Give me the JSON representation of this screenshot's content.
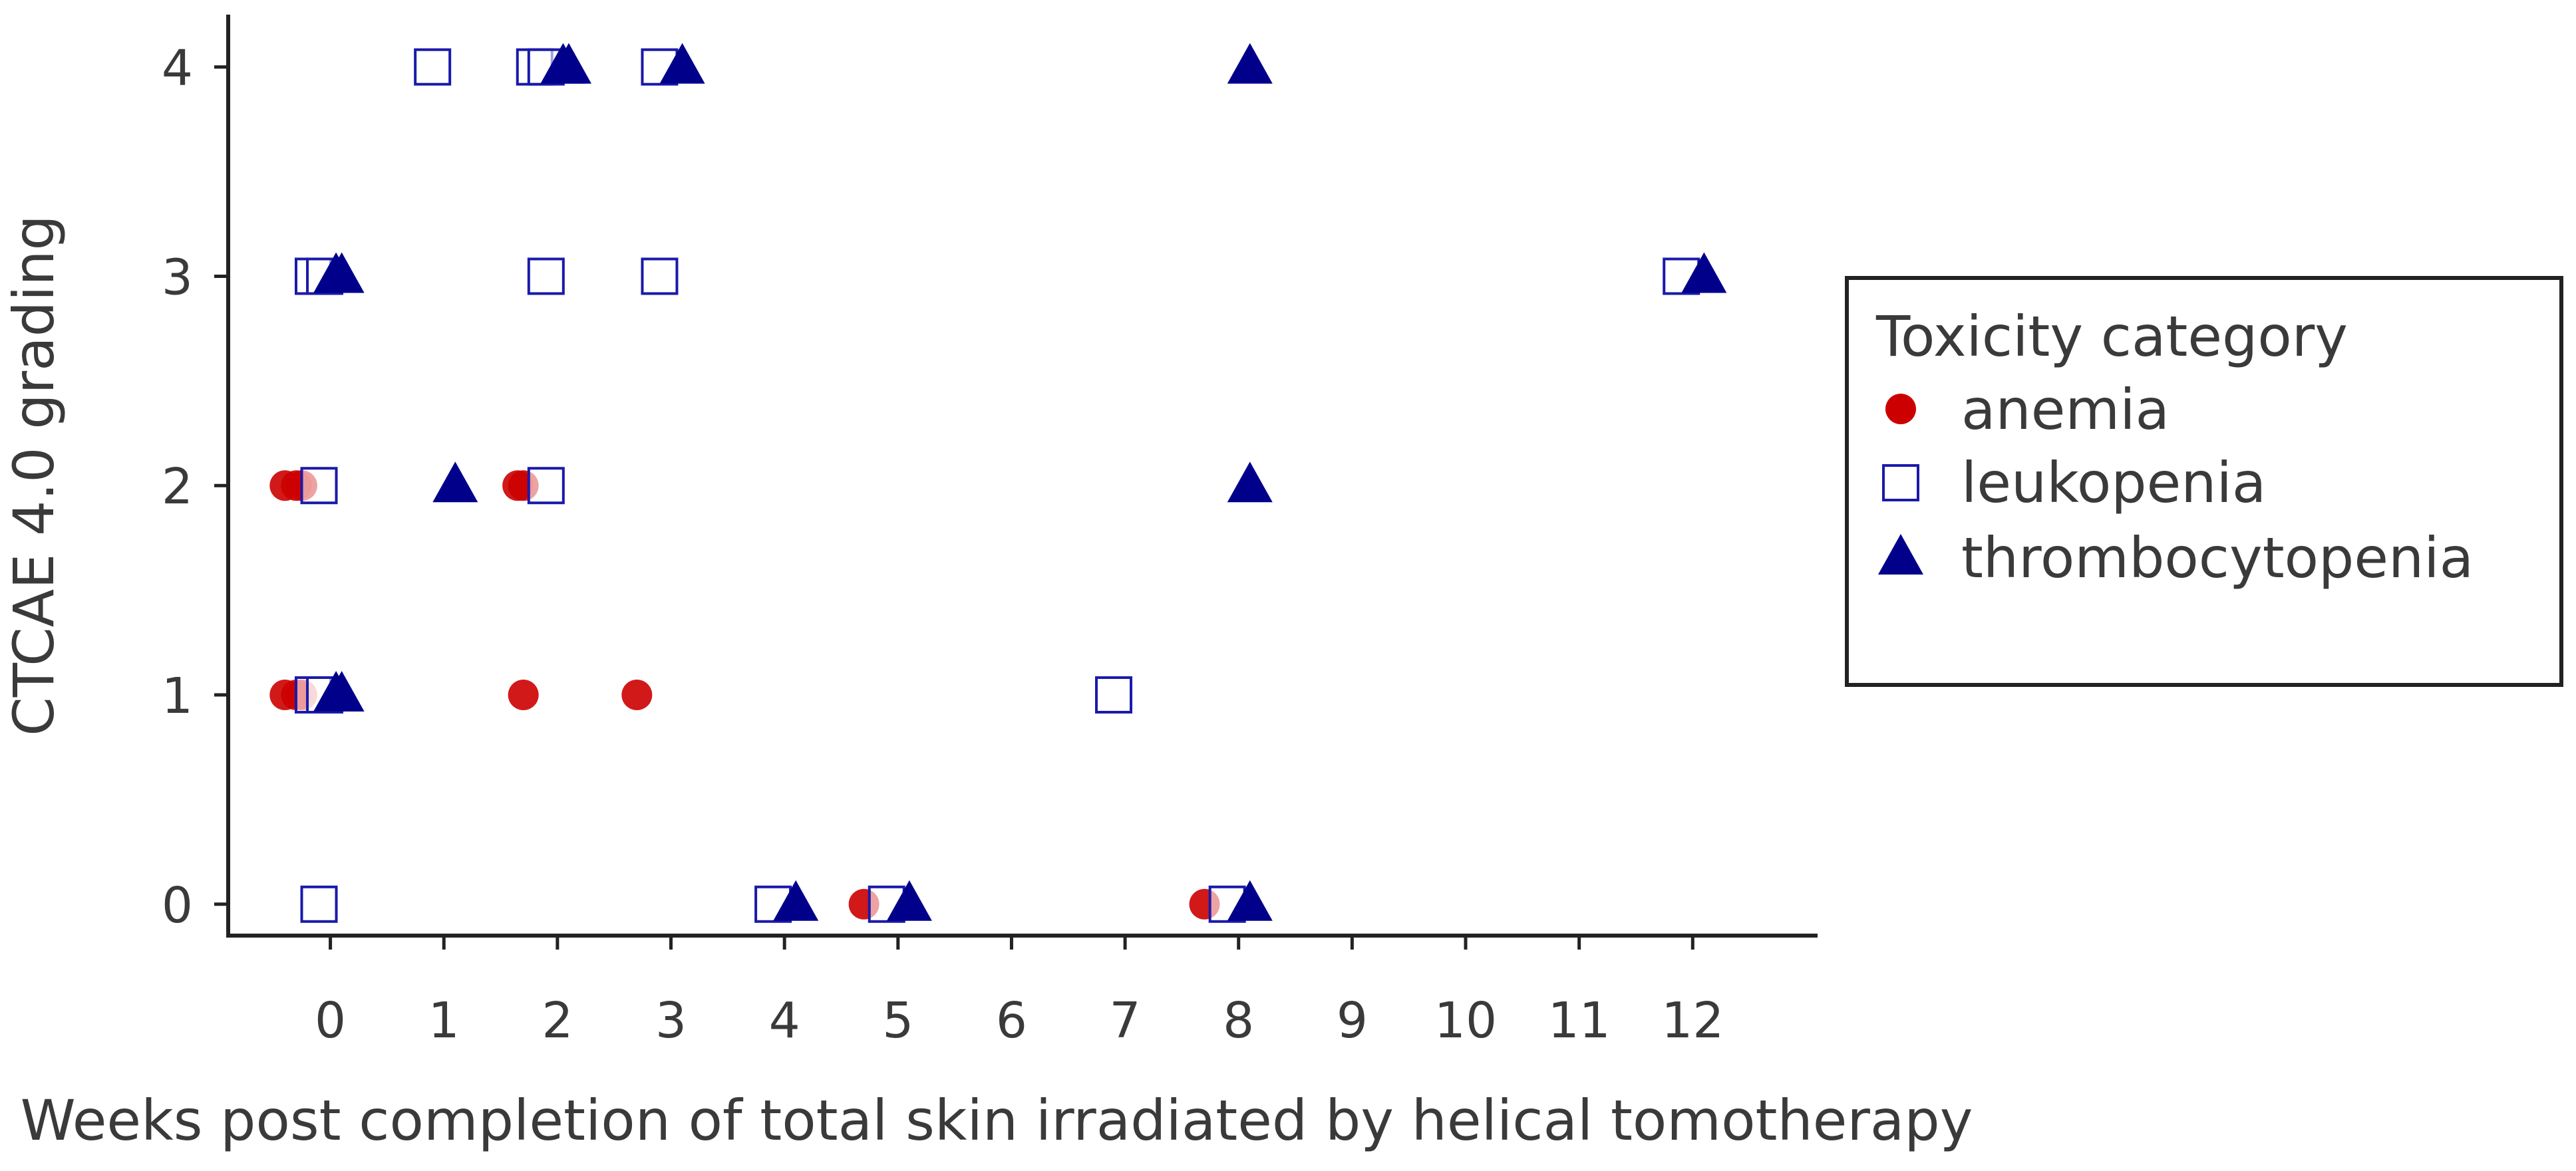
{
  "chart_data": {
    "type": "scatter",
    "title": "",
    "xlabel": "Weeks post completion of total skin irradiated by helical tomotherapy",
    "ylabel": "CTCAE 4.0 grading",
    "xlim": [
      -0.9,
      13.1
    ],
    "ylim": [
      -0.15,
      4.25
    ],
    "x_ticks": [
      "0",
      "1",
      "2",
      "3",
      "4",
      "5",
      "6",
      "7",
      "8",
      "9",
      "10",
      "11",
      "12"
    ],
    "y_ticks": [
      "0",
      "1",
      "2",
      "3",
      "4"
    ],
    "grid": false,
    "legend": {
      "title": "Toxicity category",
      "position": "right"
    },
    "series": [
      {
        "name": "anemia",
        "marker": "filled-circle",
        "color": "#cc0000",
        "points": [
          {
            "x": -0.4,
            "y": 2
          },
          {
            "x": -0.3,
            "y": 2
          },
          {
            "x": -0.25,
            "y": 2
          },
          {
            "x": -0.4,
            "y": 1
          },
          {
            "x": -0.3,
            "y": 1
          },
          {
            "x": -0.25,
            "y": 1
          },
          {
            "x": 1.65,
            "y": 2
          },
          {
            "x": 1.7,
            "y": 2
          },
          {
            "x": 1.7,
            "y": 1
          },
          {
            "x": 2.7,
            "y": 1
          },
          {
            "x": 4.7,
            "y": 0
          },
          {
            "x": 7.7,
            "y": 0
          }
        ]
      },
      {
        "name": "leukopenia",
        "marker": "open-square",
        "color": "#1a1aaa",
        "points": [
          {
            "x": 0.9,
            "y": 4
          },
          {
            "x": 1.8,
            "y": 4
          },
          {
            "x": 1.9,
            "y": 4
          },
          {
            "x": 2.9,
            "y": 4
          },
          {
            "x": -0.15,
            "y": 3
          },
          {
            "x": -0.05,
            "y": 3
          },
          {
            "x": 1.9,
            "y": 3
          },
          {
            "x": 2.9,
            "y": 3
          },
          {
            "x": 11.9,
            "y": 3
          },
          {
            "x": -0.1,
            "y": 2
          },
          {
            "x": 1.9,
            "y": 2
          },
          {
            "x": -0.15,
            "y": 1
          },
          {
            "x": -0.05,
            "y": 1
          },
          {
            "x": 6.9,
            "y": 1
          },
          {
            "x": -0.1,
            "y": 0
          },
          {
            "x": 3.9,
            "y": 0
          },
          {
            "x": 4.9,
            "y": 0
          },
          {
            "x": 7.9,
            "y": 0
          }
        ]
      },
      {
        "name": "thrombocytopenia",
        "marker": "filled-triangle",
        "color": "#00008b",
        "points": [
          {
            "x": 2.05,
            "y": 4
          },
          {
            "x": 2.1,
            "y": 4
          },
          {
            "x": 3.1,
            "y": 4
          },
          {
            "x": 8.1,
            "y": 4
          },
          {
            "x": 0.05,
            "y": 3
          },
          {
            "x": 0.1,
            "y": 3
          },
          {
            "x": 12.1,
            "y": 3
          },
          {
            "x": 1.1,
            "y": 2
          },
          {
            "x": 8.1,
            "y": 2
          },
          {
            "x": 0.05,
            "y": 1
          },
          {
            "x": 0.1,
            "y": 1
          },
          {
            "x": 4.1,
            "y": 0
          },
          {
            "x": 5.1,
            "y": 0
          },
          {
            "x": 8.1,
            "y": 0
          }
        ]
      }
    ]
  }
}
